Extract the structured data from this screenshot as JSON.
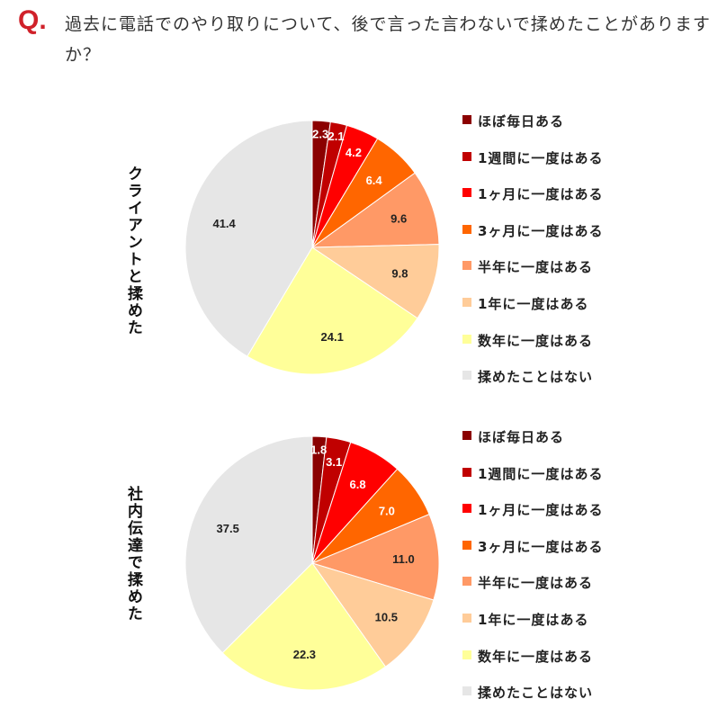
{
  "question": {
    "prefix": "Q.",
    "text": "過去に電話でのやり取りについて、後で言った言わないで揉めたことがありますか？"
  },
  "chart_data": [
    {
      "type": "pie",
      "title": "クライアントと揉めた",
      "categories": [
        "ほぼ毎日ある",
        "1週間に一度はある",
        "1ヶ月に一度はある",
        "3ヶ月に一度はある",
        "半年に一度はある",
        "1年に一度はある",
        "数年に一度はある",
        "揉めたことはない"
      ],
      "values": [
        2.3,
        2.1,
        4.2,
        6.4,
        9.6,
        9.8,
        24.1,
        41.4
      ],
      "data_labels": [
        "2.3",
        "2.1",
        "4.2",
        "6.4",
        "9.6",
        "9.8",
        "24.1",
        "41.4"
      ],
      "legend_placement": "right"
    },
    {
      "type": "pie",
      "title": "社内伝達で揉めた",
      "categories": [
        "ほぼ毎日ある",
        "1週間に一度はある",
        "1ヶ月に一度はある",
        "3ヶ月に一度はある",
        "半年に一度はある",
        "1年に一度はある",
        "数年に一度はある",
        "揉めたことはない"
      ],
      "values": [
        1.8,
        3.1,
        6.8,
        7.0,
        11.0,
        10.5,
        22.3,
        37.5
      ],
      "data_labels": [
        "1.8",
        "3.1",
        "6.8",
        "7.0",
        "11.0",
        "10.5",
        "22.3",
        "37.5"
      ],
      "legend_placement": "right"
    }
  ],
  "colors": [
    "#8b0000",
    "#c00000",
    "#ff0000",
    "#ff6600",
    "#ff9966",
    "#ffcc99",
    "#ffff99",
    "#e6e6e6"
  ],
  "label_colors": [
    "#ffffff",
    "#ffffff",
    "#ffffff",
    "#ffffff",
    "#222222",
    "#222222",
    "#222222",
    "#222222"
  ]
}
